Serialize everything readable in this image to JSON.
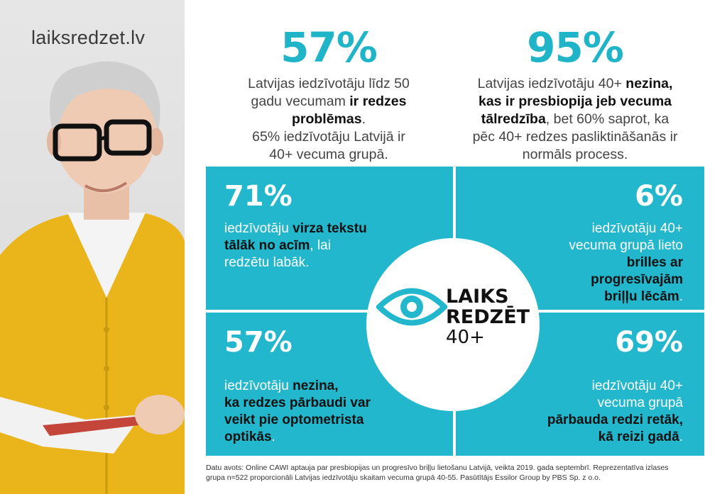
{
  "brand": {
    "site": "laiksredzet.lv"
  },
  "colors": {
    "accent": "#22b7cc",
    "accent_text": "#1fb4c8"
  },
  "top_left": {
    "percent": "57%",
    "lines": [
      "Latvijas iedzīvotāju līdz 50",
      "gadu vecumam ",
      "ir redzes",
      "problēmas",
      ".",
      "65% iedzīvotāju Latvijā ir",
      "40+ vecuma grupā."
    ]
  },
  "top_right": {
    "percent": "95%",
    "lines": [
      "Latvijas iedzīvotāju 40+ ",
      "nezina,",
      "kas ir presbiopija jeb vecuma",
      "tālredzība",
      ", bet 60% saprot, ka",
      "pēc 40+ redzes pasliktināšanās ir",
      "normāls process."
    ]
  },
  "tiles": {
    "tl": {
      "percent": "71%",
      "t1": "iedzīvotāju ",
      "b1": "virza tekstu",
      "b2": "tālāk no acīm",
      "t2": ", lai",
      "t3": "redzētu labāk."
    },
    "tr": {
      "percent": "6%",
      "t1": "iedzīvotāju 40+",
      "t2": "vecuma grupā lieto",
      "b1": "brilles ar",
      "b2": "progresīvajām",
      "b3": "briļļu lēcām",
      "t3": "."
    },
    "bl": {
      "percent": "57%",
      "t1": "iedzīvotāju ",
      "b1": "nezina,",
      "b2": "ka redzes pārbaudi var",
      "b3": "veikt pie optometrista",
      "b4": "optikās",
      "t2": "."
    },
    "br": {
      "percent": "69%",
      "t1": "iedzīvotāju 40+",
      "t2": "vecuma grupā",
      "b1": "pārbauda redzi retāk,",
      "b2": "kā reizi gadā",
      "t3": "."
    }
  },
  "logo": {
    "line1": "LAIKS",
    "line2": "REDZĒT",
    "line3": "40+"
  },
  "footer": {
    "line1": "Datu avots: Online CAWI aptauja par presbiopijas un progresīvo briļļu lietošanu Latvijā, veikta 2019. gada septembrī. Reprezentatīva izlases",
    "line2": "grupa n=522 proporcionāli Latvijas iedzīvotāju skaitam vecuma grupā 40-55. Pasūtītājs Essilor Group by PBS Sp. z o.o."
  }
}
